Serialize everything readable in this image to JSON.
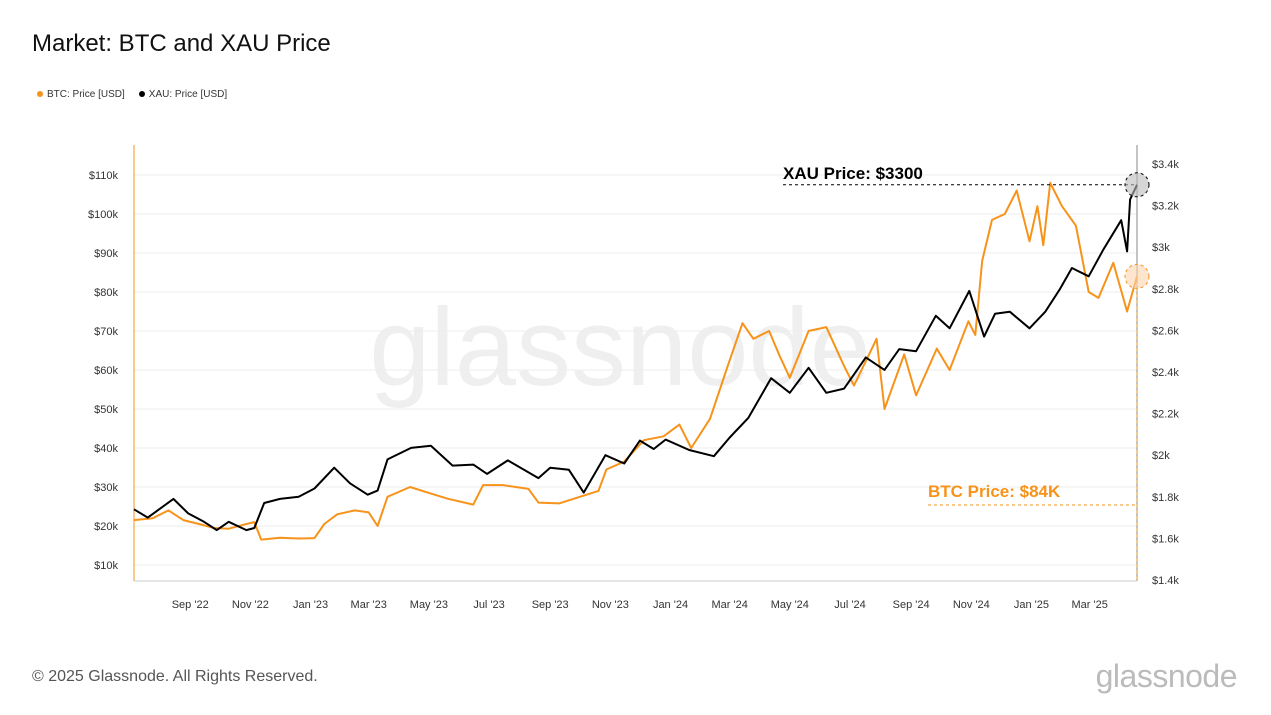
{
  "title": "Market: BTC and XAU Price",
  "footer": "© 2025 Glassnode. All Rights Reserved.",
  "logo": "glassnode",
  "watermark": "glassnode",
  "colors": {
    "btc": "#f7931a",
    "xau": "#000000",
    "grid": "#eeeeee"
  },
  "legend": [
    {
      "label": "BTC: Price [USD]",
      "color": "#f7931a"
    },
    {
      "label": "XAU: Price [USD]",
      "color": "#000000"
    }
  ],
  "chart_data": {
    "type": "line",
    "title": "Market: BTC and XAU Price",
    "x_range": [
      "2022-07-06",
      "2025-04-18"
    ],
    "x_ticks": [
      "Sep '22",
      "Nov '22",
      "Jan '23",
      "Mar '23",
      "May '23",
      "Jul '23",
      "Sep '23",
      "Nov '23",
      "Jan '24",
      "Mar '24",
      "May '24",
      "Jul '24",
      "Sep '24",
      "Nov '24",
      "Jan '25",
      "Mar '25"
    ],
    "x_tick_dates": [
      "2022-09-01",
      "2022-11-01",
      "2023-01-01",
      "2023-03-01",
      "2023-05-01",
      "2023-07-01",
      "2023-09-01",
      "2023-11-01",
      "2024-01-01",
      "2024-03-01",
      "2024-05-01",
      "2024-07-01",
      "2024-09-01",
      "2024-11-01",
      "2025-01-01",
      "2025-03-01"
    ],
    "y_left": {
      "ticks": [
        "$10k",
        "$20k",
        "$30k",
        "$40k",
        "$50k",
        "$60k",
        "$70k",
        "$80k",
        "$90k",
        "$100k",
        "$110k"
      ],
      "tick_values": [
        10000,
        20000,
        30000,
        40000,
        50000,
        60000,
        70000,
        80000,
        90000,
        100000,
        110000
      ],
      "range": [
        0,
        115000
      ]
    },
    "y_right": {
      "ticks": [
        "$1.4k",
        "$1.6k",
        "$1.8k",
        "$2k",
        "$2.2k",
        "$2.4k",
        "$2.6k",
        "$2.8k",
        "$3k",
        "$3.2k",
        "$3.4k"
      ],
      "tick_values": [
        1400,
        1600,
        1800,
        2000,
        2200,
        2400,
        2600,
        2800,
        3000,
        3200,
        3400
      ],
      "range": [
        1400,
        3400
      ]
    },
    "grid": true,
    "legend_position": "top-left",
    "series": [
      {
        "name": "BTC: Price [USD]",
        "axis": "left",
        "color": "#f7931a",
        "points": [
          [
            "2022-07-06",
            21500
          ],
          [
            "2022-07-25",
            22000
          ],
          [
            "2022-08-10",
            24000
          ],
          [
            "2022-08-25",
            21500
          ],
          [
            "2022-09-10",
            20500
          ],
          [
            "2022-09-25",
            19500
          ],
          [
            "2022-10-10",
            19300
          ],
          [
            "2022-10-28",
            20500
          ],
          [
            "2022-11-05",
            21000
          ],
          [
            "2022-11-12",
            16500
          ],
          [
            "2022-12-01",
            17000
          ],
          [
            "2022-12-20",
            16800
          ],
          [
            "2023-01-05",
            16900
          ],
          [
            "2023-01-15",
            20500
          ],
          [
            "2023-01-28",
            23000
          ],
          [
            "2023-02-15",
            24000
          ],
          [
            "2023-03-01",
            23500
          ],
          [
            "2023-03-10",
            20000
          ],
          [
            "2023-03-20",
            27500
          ],
          [
            "2023-04-12",
            30000
          ],
          [
            "2023-05-01",
            28500
          ],
          [
            "2023-05-20",
            27000
          ],
          [
            "2023-06-15",
            25500
          ],
          [
            "2023-06-25",
            30500
          ],
          [
            "2023-07-15",
            30500
          ],
          [
            "2023-08-10",
            29500
          ],
          [
            "2023-08-20",
            26000
          ],
          [
            "2023-09-10",
            25800
          ],
          [
            "2023-10-01",
            27500
          ],
          [
            "2023-10-20",
            29000
          ],
          [
            "2023-10-28",
            34500
          ],
          [
            "2023-11-15",
            36500
          ],
          [
            "2023-12-05",
            42000
          ],
          [
            "2023-12-25",
            43000
          ],
          [
            "2024-01-10",
            46000
          ],
          [
            "2024-01-22",
            40000
          ],
          [
            "2024-02-10",
            47500
          ],
          [
            "2024-02-28",
            61000
          ],
          [
            "2024-03-14",
            72000
          ],
          [
            "2024-03-25",
            68000
          ],
          [
            "2024-04-10",
            70000
          ],
          [
            "2024-04-20",
            64000
          ],
          [
            "2024-05-01",
            58000
          ],
          [
            "2024-05-20",
            70000
          ],
          [
            "2024-06-07",
            71000
          ],
          [
            "2024-06-25",
            61000
          ],
          [
            "2024-07-05",
            56000
          ],
          [
            "2024-07-28",
            68000
          ],
          [
            "2024-08-05",
            50000
          ],
          [
            "2024-08-25",
            64000
          ],
          [
            "2024-09-06",
            53500
          ],
          [
            "2024-09-27",
            65500
          ],
          [
            "2024-10-10",
            60000
          ],
          [
            "2024-10-29",
            72500
          ],
          [
            "2024-11-05",
            69000
          ],
          [
            "2024-11-12",
            88000
          ],
          [
            "2024-11-22",
            98500
          ],
          [
            "2024-12-05",
            100000
          ],
          [
            "2024-12-17",
            106000
          ],
          [
            "2024-12-30",
            93000
          ],
          [
            "2025-01-07",
            102000
          ],
          [
            "2025-01-13",
            92000
          ],
          [
            "2025-01-20",
            108000
          ],
          [
            "2025-02-01",
            102000
          ],
          [
            "2025-02-15",
            97000
          ],
          [
            "2025-02-28",
            80000
          ],
          [
            "2025-03-10",
            78500
          ],
          [
            "2025-03-25",
            87500
          ],
          [
            "2025-04-08",
            75000
          ],
          [
            "2025-04-18",
            84000
          ]
        ]
      },
      {
        "name": "XAU: Price [USD]",
        "axis": "right",
        "color": "#000000",
        "points": [
          [
            "2022-07-06",
            1740
          ],
          [
            "2022-07-20",
            1700
          ],
          [
            "2022-08-15",
            1790
          ],
          [
            "2022-08-30",
            1720
          ],
          [
            "2022-09-15",
            1680
          ],
          [
            "2022-09-28",
            1640
          ],
          [
            "2022-10-10",
            1680
          ],
          [
            "2022-10-28",
            1640
          ],
          [
            "2022-11-05",
            1650
          ],
          [
            "2022-11-15",
            1770
          ],
          [
            "2022-12-01",
            1790
          ],
          [
            "2022-12-20",
            1800
          ],
          [
            "2023-01-05",
            1840
          ],
          [
            "2023-01-25",
            1940
          ],
          [
            "2023-02-10",
            1865
          ],
          [
            "2023-02-28",
            1810
          ],
          [
            "2023-03-10",
            1830
          ],
          [
            "2023-03-20",
            1980
          ],
          [
            "2023-04-13",
            2035
          ],
          [
            "2023-05-03",
            2045
          ],
          [
            "2023-05-25",
            1950
          ],
          [
            "2023-06-15",
            1955
          ],
          [
            "2023-06-29",
            1910
          ],
          [
            "2023-07-20",
            1975
          ],
          [
            "2023-08-20",
            1890
          ],
          [
            "2023-09-01",
            1940
          ],
          [
            "2023-09-20",
            1930
          ],
          [
            "2023-10-05",
            1820
          ],
          [
            "2023-10-27",
            2000
          ],
          [
            "2023-11-15",
            1960
          ],
          [
            "2023-12-01",
            2070
          ],
          [
            "2023-12-15",
            2030
          ],
          [
            "2023-12-27",
            2075
          ],
          [
            "2024-01-20",
            2025
          ],
          [
            "2024-02-14",
            1995
          ],
          [
            "2024-03-01",
            2085
          ],
          [
            "2024-03-20",
            2180
          ],
          [
            "2024-04-12",
            2370
          ],
          [
            "2024-05-01",
            2300
          ],
          [
            "2024-05-20",
            2420
          ],
          [
            "2024-06-07",
            2300
          ],
          [
            "2024-06-25",
            2320
          ],
          [
            "2024-07-17",
            2470
          ],
          [
            "2024-08-05",
            2410
          ],
          [
            "2024-08-20",
            2510
          ],
          [
            "2024-09-06",
            2500
          ],
          [
            "2024-09-26",
            2670
          ],
          [
            "2024-10-10",
            2610
          ],
          [
            "2024-10-30",
            2790
          ],
          [
            "2024-11-14",
            2570
          ],
          [
            "2024-11-25",
            2680
          ],
          [
            "2024-12-10",
            2690
          ],
          [
            "2024-12-30",
            2610
          ],
          [
            "2025-01-15",
            2690
          ],
          [
            "2025-01-30",
            2800
          ],
          [
            "2025-02-11",
            2900
          ],
          [
            "2025-02-28",
            2860
          ],
          [
            "2025-03-15",
            2990
          ],
          [
            "2025-04-02",
            3130
          ],
          [
            "2025-04-08",
            2980
          ],
          [
            "2025-04-11",
            3230
          ],
          [
            "2025-04-18",
            3300
          ]
        ]
      }
    ],
    "annotations": [
      {
        "text": "XAU Price: $3300",
        "series": "XAU: Price [USD]",
        "value": 3300,
        "color": "#000000"
      },
      {
        "text": "BTC Price: $84K",
        "series": "BTC: Price [USD]",
        "value": 84000,
        "color": "#f7931a"
      }
    ]
  }
}
